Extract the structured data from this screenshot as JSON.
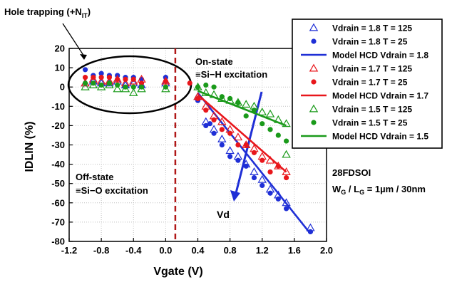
{
  "chart_data": {
    "type": "scatter",
    "title": "",
    "xlabel": "Vgate (V)",
    "ylabel": "IDLIN (%)",
    "xlim": [
      -1.2,
      2.0
    ],
    "ylim": [
      -80,
      20
    ],
    "xticks": [
      -1.2,
      -0.8,
      -0.4,
      0.0,
      0.4,
      0.8,
      1.2,
      1.6,
      2.0
    ],
    "xtick_labels": [
      "-1.2",
      "-0.8",
      "-0.4",
      "0.0",
      "0.4",
      "0.8",
      "1.2",
      "1.6",
      "2.0"
    ],
    "yticks": [
      20,
      10,
      0,
      -10,
      -20,
      -30,
      -40,
      -50,
      -60,
      -70,
      -80
    ],
    "ytick_labels": [
      "20",
      "10",
      "0",
      "-10",
      "-20",
      "-30",
      "-40",
      "-50",
      "-60",
      "-70",
      "-80"
    ],
    "legend_position": "top-right",
    "series": [
      {
        "name": "Vdrain = 1.8 T = 125",
        "marker": "triangle-open",
        "color": "#1f2fd6",
        "x": [
          -1.0,
          -0.9,
          -0.8,
          -0.7,
          -0.6,
          -0.5,
          -0.4,
          -0.3,
          0.0,
          0.4,
          0.5,
          0.6,
          0.7,
          0.8,
          0.9,
          1.0,
          1.1,
          1.2,
          1.3,
          1.4,
          1.5,
          1.8
        ],
        "y": [
          2,
          3,
          2,
          2,
          3,
          1,
          2,
          1,
          2,
          -5,
          -18,
          -22,
          -27,
          -33,
          -36,
          -40,
          -44,
          -48,
          -53,
          -56,
          -60,
          -73
        ]
      },
      {
        "name": "Vdrain = 1.8 T = 25",
        "marker": "circle-filled",
        "color": "#1f2fd6",
        "x": [
          -1.0,
          -0.9,
          -0.8,
          -0.7,
          -0.6,
          -0.5,
          -0.4,
          -0.3,
          0.0,
          0.4,
          0.5,
          0.55,
          0.6,
          0.7,
          0.8,
          0.9,
          1.0,
          1.1,
          1.2,
          1.3,
          1.4,
          1.5,
          1.8
        ],
        "y": [
          9,
          6,
          7,
          6,
          6,
          5,
          5,
          4,
          5,
          -7,
          -20,
          -19,
          -24,
          -30,
          -36,
          -38,
          -41,
          -47,
          -51,
          -55,
          -58,
          -63,
          -75
        ]
      },
      {
        "name": "Model HCD Vdrain = 1.8",
        "marker": "line",
        "color": "#1f2fd6",
        "x": [
          0.4,
          1.8
        ],
        "y": [
          -3,
          -76
        ]
      },
      {
        "name": "Vdrain = 1.7 T = 125",
        "marker": "triangle-open",
        "color": "#e8161b",
        "x": [
          -1.0,
          -0.9,
          -0.8,
          -0.7,
          -0.6,
          -0.5,
          -0.4,
          -0.3,
          0.0,
          0.4,
          0.5,
          0.6,
          0.7,
          0.8,
          0.9,
          1.0,
          1.1,
          1.2,
          1.3,
          1.4,
          1.5
        ],
        "y": [
          2,
          4,
          3,
          3,
          4,
          2,
          3,
          4,
          3,
          -5,
          -10,
          -15,
          -18,
          -22,
          -26,
          -30,
          -32,
          -36,
          -38,
          -41,
          -44
        ]
      },
      {
        "name": "Vdrain = 1.7 T = 25",
        "marker": "circle-filled",
        "color": "#e8161b",
        "x": [
          -1.0,
          -0.9,
          -0.8,
          -0.7,
          -0.6,
          -0.5,
          -0.4,
          -0.3,
          0.0,
          0.3,
          0.4,
          0.5,
          0.6,
          0.7,
          0.8,
          0.9,
          1.0,
          1.1,
          1.2,
          1.3,
          1.4,
          1.5
        ],
        "y": [
          5,
          5,
          5,
          5,
          4,
          4,
          4,
          2,
          3,
          2,
          -6,
          -12,
          -17,
          -22,
          -24,
          -30,
          -30,
          -34,
          -38,
          -44,
          -41,
          -47
        ]
      },
      {
        "name": "Model HCD Vdrain = 1.7",
        "marker": "line",
        "color": "#e8161b",
        "x": [
          0.4,
          1.5
        ],
        "y": [
          -4,
          -44
        ]
      },
      {
        "name": "Vdrain = 1.5 T = 125",
        "marker": "triangle-open",
        "color": "#1a9a1a",
        "x": [
          -1.0,
          -0.9,
          -0.8,
          -0.7,
          -0.6,
          -0.5,
          -0.4,
          -0.3,
          0.0,
          0.4,
          0.5,
          0.6,
          0.7,
          0.8,
          0.9,
          1.0,
          1.1,
          1.2,
          1.3,
          1.4,
          1.5,
          1.5
        ],
        "y": [
          0,
          1,
          0,
          1,
          -1,
          -1,
          -3,
          -1,
          -1,
          0,
          -3,
          -4,
          -6,
          -7,
          -8,
          -9,
          -10,
          -13,
          -14,
          -17,
          -19,
          -35
        ]
      },
      {
        "name": "Vdrain = 1.5 T = 25",
        "marker": "circle-filled",
        "color": "#1a9a1a",
        "x": [
          -1.0,
          -0.9,
          -0.8,
          -0.7,
          -0.6,
          -0.5,
          -0.4,
          -0.3,
          0.0,
          0.4,
          0.5,
          0.6,
          0.7,
          0.8,
          0.9,
          1.0,
          1.1,
          1.2,
          1.3,
          1.4,
          1.5
        ],
        "y": [
          2,
          2,
          1,
          2,
          1,
          0,
          0,
          0,
          0,
          0,
          1,
          0,
          -5,
          -6,
          -8,
          -15,
          -12,
          -19,
          -22,
          -25,
          -28
        ]
      },
      {
        "name": "Model HCD Vdrain = 1.5",
        "marker": "line",
        "color": "#1a9a1a",
        "x": [
          0.4,
          1.5
        ],
        "y": [
          -2,
          -20
        ]
      }
    ],
    "annotations": {
      "hole_trapping": "Hole trapping (+N",
      "hole_trapping_sub": "IT",
      "hole_trapping_end": ")",
      "on_state_1": "On-state",
      "on_state_2": "≡Si−H excitation",
      "off_state_1": "Off-state",
      "off_state_2": "≡Si−O excitation",
      "device": "28FDSOI",
      "dims_w": "W",
      "dims_w_sub": "G",
      "dims_sep": " / L",
      "dims_l_sub": "G",
      "dims_val": " = 1µm / 30nm",
      "arrow_label": "Vd",
      "dashed_line_x": 0.12
    }
  }
}
